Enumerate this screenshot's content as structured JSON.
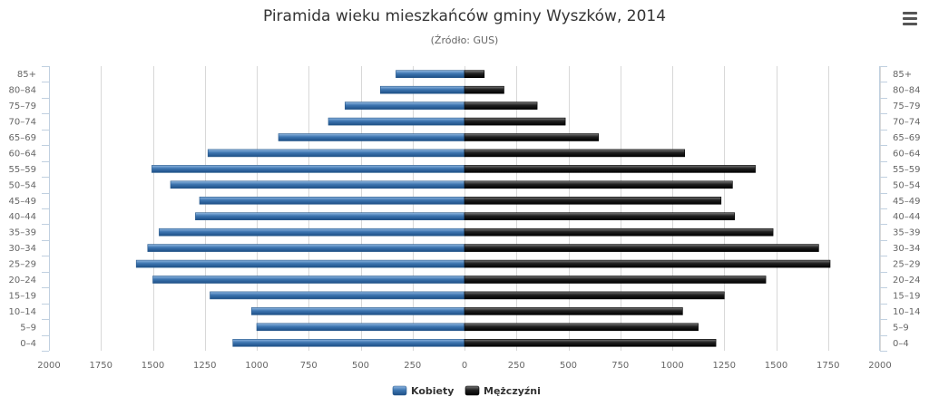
{
  "menu": {
    "icon": "hamburger-menu-icon"
  },
  "chart_data": {
    "type": "bar",
    "orientation": "horizontal",
    "layout": "population-pyramid",
    "title": "Piramida wieku mieszkańców gminy Wyszków, 2014",
    "subtitle": "(Źródło: GUS)",
    "categories": [
      "85+",
      "80–84",
      "75–79",
      "70–74",
      "65–69",
      "60–64",
      "55–59",
      "50–54",
      "45–49",
      "40–44",
      "35–39",
      "30–34",
      "25–29",
      "20–24",
      "15–19",
      "10–14",
      "5–9",
      "0–4"
    ],
    "series": [
      {
        "name": "Kobiety",
        "side": "left",
        "color": "#3d75b0",
        "values": [
          330,
          405,
          575,
          655,
          895,
          1235,
          1505,
          1415,
          1275,
          1295,
          1470,
          1525,
          1580,
          1500,
          1225,
          1025,
          1000,
          1115
        ]
      },
      {
        "name": "Mężczyźni",
        "side": "right",
        "color": "#1f1f1f",
        "values": [
          95,
          190,
          350,
          485,
          645,
          1060,
          1400,
          1290,
          1235,
          1300,
          1485,
          1705,
          1760,
          1450,
          1250,
          1050,
          1125,
          1210
        ]
      }
    ],
    "xlim": [
      -2000,
      2000
    ],
    "xticks": [
      -2000,
      -1750,
      -1500,
      -1250,
      -1000,
      -750,
      -500,
      -250,
      0,
      250,
      500,
      750,
      1000,
      1250,
      1500,
      1750,
      2000
    ],
    "xtick_labels": [
      "2000",
      "1750",
      "1500",
      "1250",
      "1000",
      "750",
      "500",
      "250",
      "0",
      "250",
      "500",
      "750",
      "1000",
      "1250",
      "1500",
      "1750",
      "2000"
    ],
    "grid": true,
    "legend": "bottom-center"
  }
}
